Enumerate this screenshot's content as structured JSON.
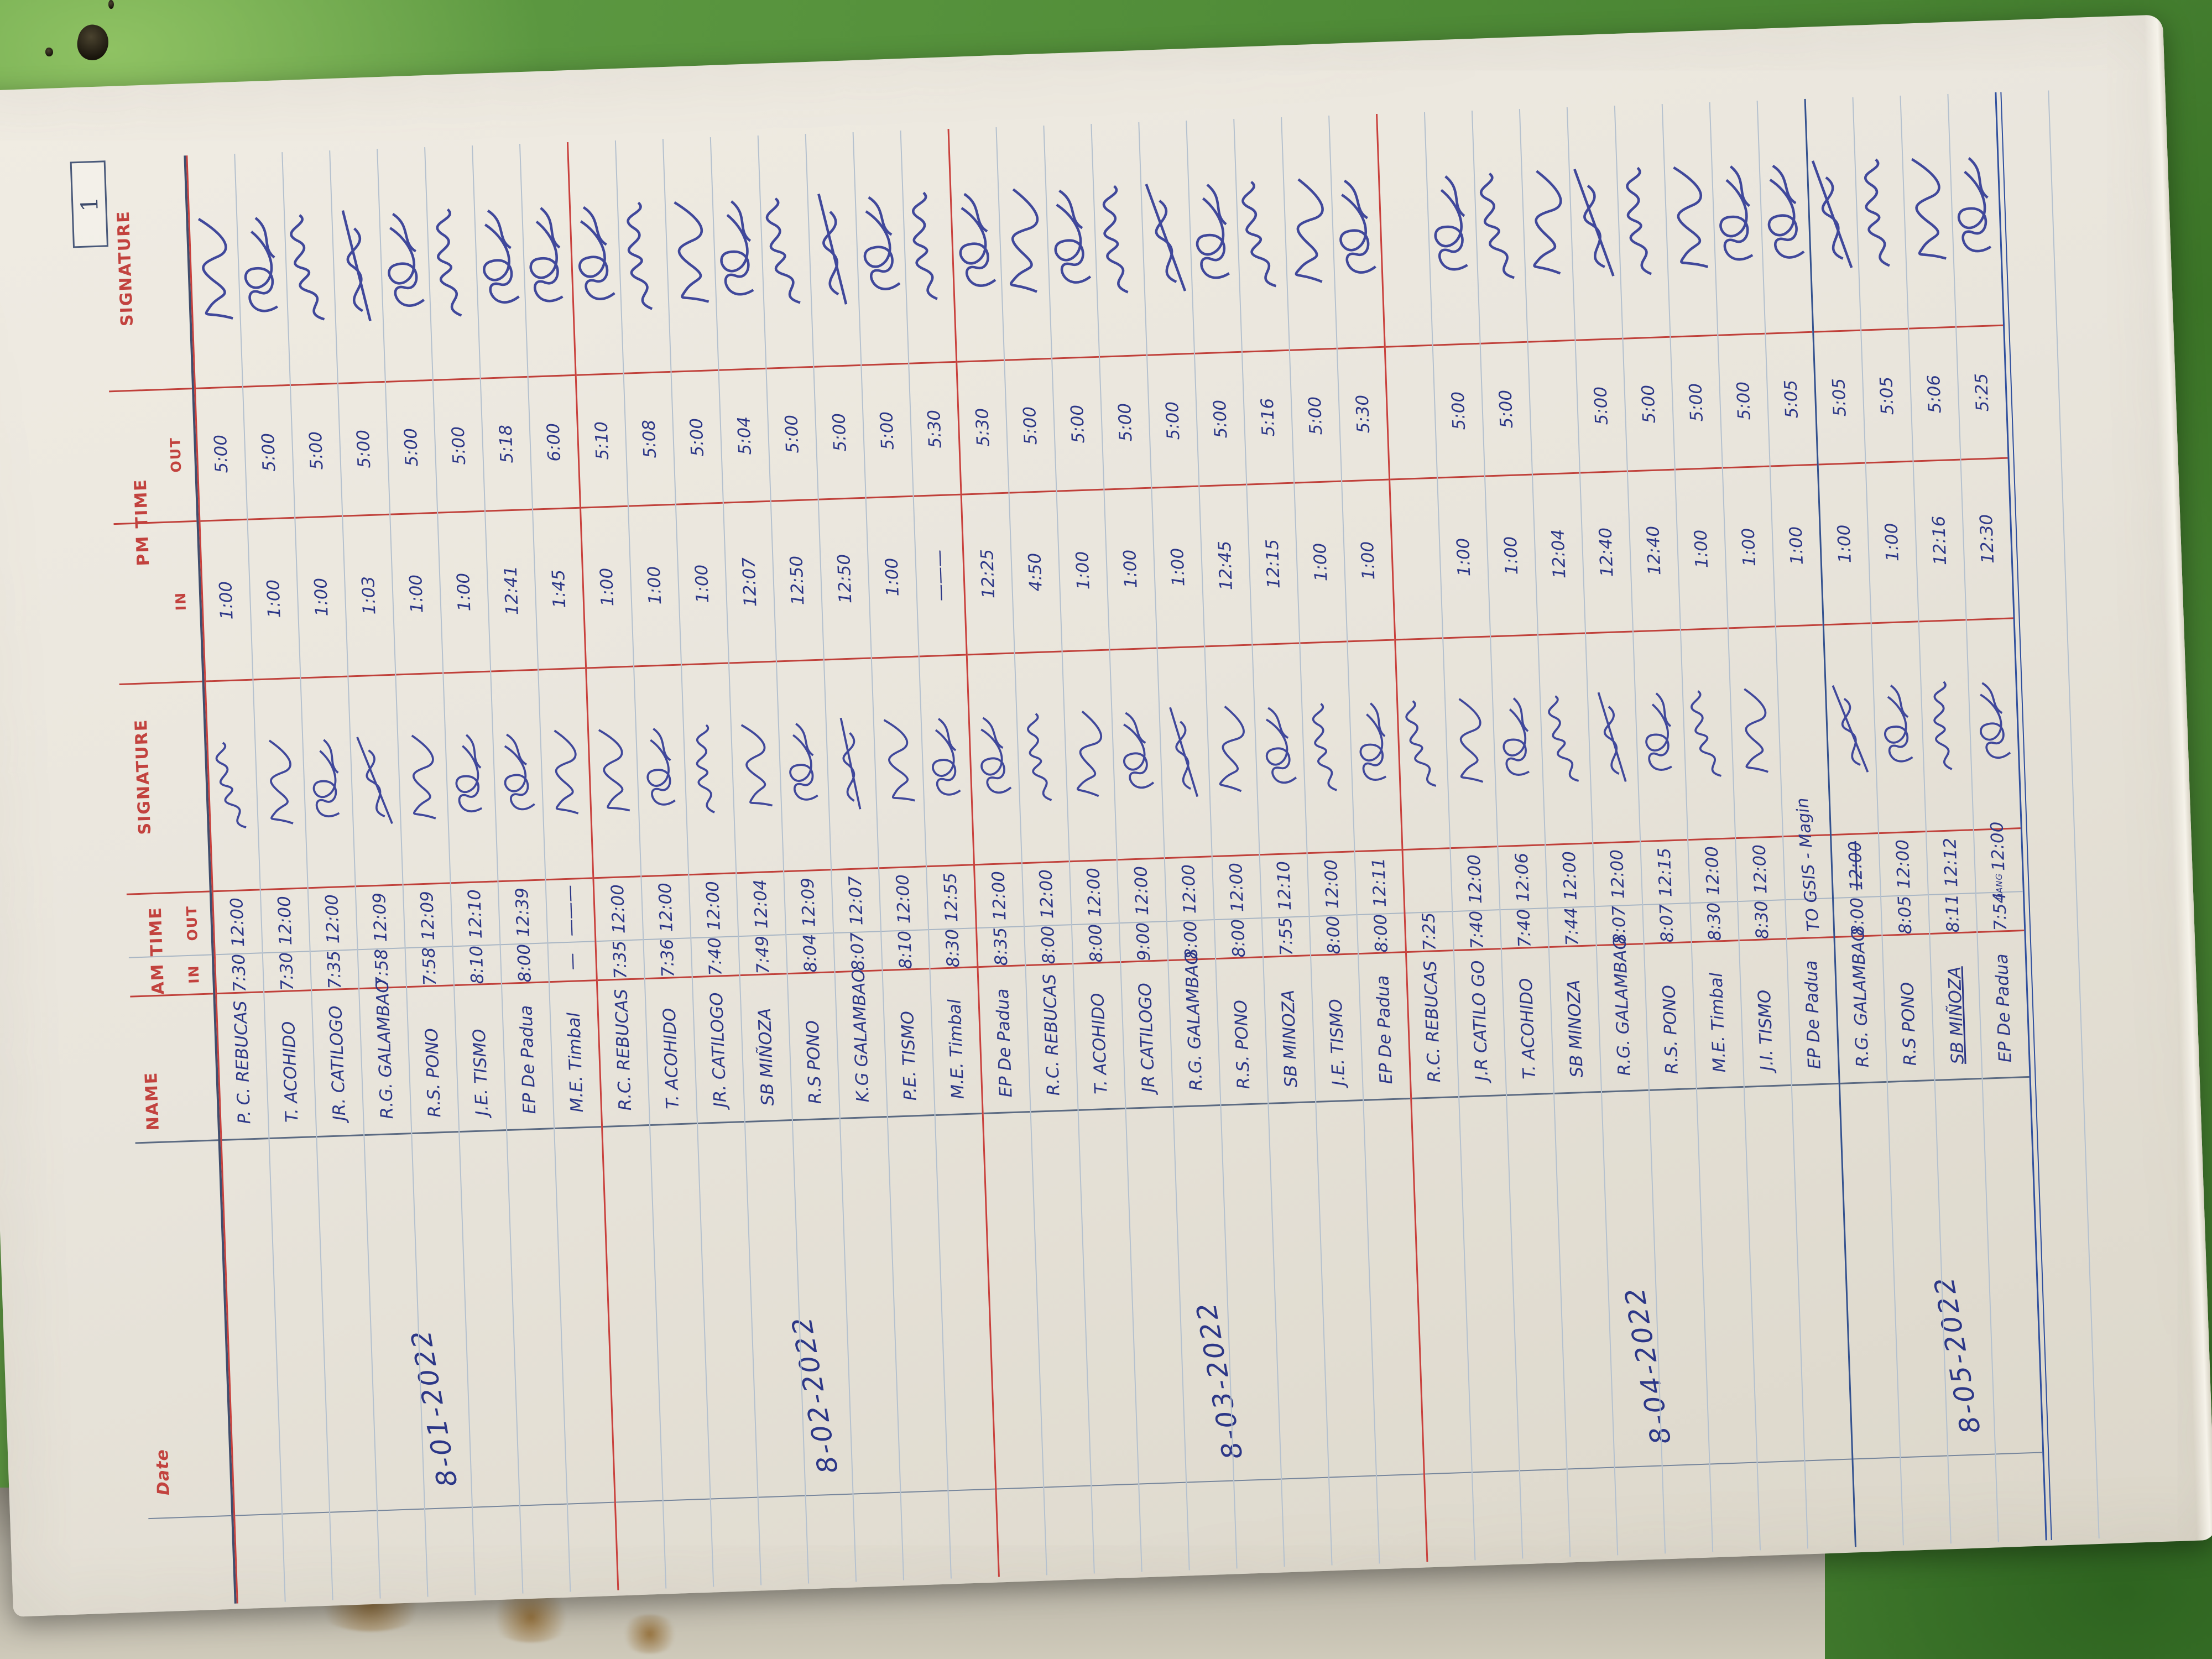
{
  "page_number": "1",
  "headers": {
    "date": "Date",
    "name": "NAME",
    "am_time": "AM TIME",
    "pm_time": "PM TIME",
    "in": "IN",
    "out": "OUT",
    "signature": "SIGNATURE"
  },
  "colors": {
    "table_green": "#4f8b37",
    "page": "#e9e5dc",
    "ink_blue": "#2c3787",
    "header_red": "#c2423e",
    "group_line_red": "#c9403c",
    "end_line_blue": "#2f4f9e"
  },
  "groups": [
    {
      "date": "8-01-2022",
      "rows": [
        {
          "name": "P. C. REBUCAS",
          "am_in": "7:30",
          "am_out": "12:00",
          "pm_in": "1:00",
          "pm_out": "5:00"
        },
        {
          "name": "T. ACOHIDO",
          "am_in": "7:30",
          "am_out": "12:00",
          "pm_in": "1:00",
          "pm_out": "5:00"
        },
        {
          "name": "JR. CATILOGO",
          "am_in": "7:35",
          "am_out": "12:00",
          "pm_in": "1:00",
          "pm_out": "5:00"
        },
        {
          "name": "R.G. GALAMBAO",
          "am_in": "7:58",
          "am_out": "12:09",
          "pm_in": "1:03",
          "pm_out": "5:00"
        },
        {
          "name": "R.S. PONO",
          "am_in": "7:58",
          "am_out": "12:09",
          "pm_in": "1:00",
          "pm_out": "5:00"
        },
        {
          "name": "J.E. TISMO",
          "am_in": "8:10",
          "am_out": "12:10",
          "pm_in": "1:00",
          "pm_out": "5:00"
        },
        {
          "name": "EP De Padua",
          "am_in": "8:00",
          "am_out": "12:39",
          "pm_in": "12:41",
          "pm_out": "5:18"
        },
        {
          "name": "M.E. Timbal",
          "am_in": "—",
          "am_out": "———",
          "pm_in": "1:45",
          "pm_out": "6:00"
        }
      ]
    },
    {
      "date": "8-02-2022",
      "rows": [
        {
          "name": "R.C. REBUCAS",
          "am_in": "7:35",
          "am_out": "12:00",
          "pm_in": "1:00",
          "pm_out": "5:10"
        },
        {
          "name": "T. ACOHIDO",
          "am_in": "7:36",
          "am_out": "12:00",
          "pm_in": "1:00",
          "pm_out": "5:08"
        },
        {
          "name": "JR. CATILOGO",
          "am_in": "7:40",
          "am_out": "12:00",
          "pm_in": "1:00",
          "pm_out": "5:00"
        },
        {
          "name": "SB MIÑOZA",
          "am_in": "7:49",
          "am_out": "12:04",
          "pm_in": "12:07",
          "pm_out": "5:04"
        },
        {
          "name": "R.S PONO",
          "am_in": "8:04",
          "am_out": "12:09",
          "pm_in": "12:50",
          "pm_out": "5:00"
        },
        {
          "name": "K.G GALAMBAO",
          "am_in": "8:07",
          "am_out": "12:07",
          "pm_in": "12:50",
          "pm_out": "5:00"
        },
        {
          "name": "P.E. TISMO",
          "am_in": "8:10",
          "am_out": "12:00",
          "pm_in": "1:00",
          "pm_out": "5:00"
        },
        {
          "name": "M.E. Timbal",
          "am_in": "8:30",
          "am_out": "12:55",
          "pm_in": "———",
          "pm_out": "5:30"
        }
      ]
    },
    {
      "date": "8-03-2022",
      "rows": [
        {
          "name": "EP De Padua",
          "am_in": "8:35",
          "am_out": "12:00",
          "pm_in": "12:25",
          "pm_out": "5:30"
        },
        {
          "name": "R.C. REBUCAS",
          "am_in": "8:00",
          "am_out": "12:00",
          "pm_in": "4:50",
          "pm_out": "5:00"
        },
        {
          "name": "T. ACOHIDO",
          "am_in": "8:00",
          "am_out": "12:00",
          "pm_in": "1:00",
          "pm_out": "5:00"
        },
        {
          "name": "JR CATILOGO",
          "am_in": "9:00",
          "am_out": "12:00",
          "pm_in": "1:00",
          "pm_out": "5:00"
        },
        {
          "name": "R.G. GALAMBAO",
          "am_in": "8:00",
          "am_out": "12:00",
          "pm_in": "1:00",
          "pm_out": "5:00"
        },
        {
          "name": "R.S. PONO",
          "am_in": "8:00",
          "am_out": "12:00",
          "pm_in": "12:45",
          "pm_out": "5:00"
        },
        {
          "name": "SB MINOZA",
          "am_in": "7:55",
          "am_out": "12:10",
          "pm_in": "12:15",
          "pm_out": "5:16"
        },
        {
          "name": "J.E. TISMO",
          "am_in": "8:00",
          "am_out": "12:00",
          "pm_in": "1:00",
          "pm_out": "5:00"
        },
        {
          "name": "EP De Padua",
          "am_in": "8:00",
          "am_out": "12:11",
          "pm_in": "1:00",
          "pm_out": "5:30"
        }
      ]
    },
    {
      "date": "8-04-2022",
      "rows": [
        {
          "name": "R.C. REBUCAS",
          "am_in": "7:25",
          "am_out": "",
          "pm_in": "",
          "pm_out": "",
          "pm_sig": false
        },
        {
          "name": "J.R CATILO GO",
          "am_in": "7:40",
          "am_out": "12:00",
          "pm_in": "1:00",
          "pm_out": "5:00"
        },
        {
          "name": "T. ACOHIDO",
          "am_in": "7:40",
          "am_out": "12:06",
          "pm_in": "1:00",
          "pm_out": "5:00"
        },
        {
          "name": "SB MINOZA",
          "am_in": "7:44",
          "am_out": "12:00",
          "pm_in": "12:04",
          "pm_out": ""
        },
        {
          "name": "R.G. GALAMBAO",
          "am_in": "8:07",
          "am_out": "12:00",
          "pm_in": "12:40",
          "pm_out": "5:00"
        },
        {
          "name": "R.S. PONO",
          "am_in": "8:07",
          "am_out": "12:15",
          "pm_in": "12:40",
          "pm_out": "5:00"
        },
        {
          "name": "M.E. Timbal",
          "am_in": "8:30",
          "am_out": "12:00",
          "pm_in": "1:00",
          "pm_out": "5:00"
        },
        {
          "name": "J.I. TISMO",
          "am_in": "8:30",
          "am_out": "12:00",
          "pm_in": "1:00",
          "pm_out": "5:00"
        },
        {
          "name": "EP De Padua",
          "am_in": "",
          "am_out": "",
          "note": "TO GSIS - Magin",
          "am_sig": false,
          "pm_in": "1:00",
          "pm_out": "5:05"
        }
      ]
    },
    {
      "date": "8-05-2022",
      "rows": [
        {
          "name": "R.G. GALAMBAO",
          "am_in": "8:00",
          "am_out": "12:00",
          "strike_am_out": true,
          "pm_in": "1:00",
          "pm_out": "5:05"
        },
        {
          "name": "R.S PONO",
          "am_in": "8:05",
          "am_out": "12:00",
          "pm_in": "1:00",
          "pm_out": "5:05"
        },
        {
          "name": "SB MIÑOZA",
          "underline": true,
          "am_in": "8:11",
          "am_out": "12:12",
          "pm_in": "12:16",
          "pm_out": "5:06"
        },
        {
          "name": "EP De Padua",
          "am_in": "7:54",
          "am_out": "12:00",
          "am_out_note": "DANG",
          "pm_in": "12:30",
          "pm_out": "5:25"
        }
      ]
    }
  ]
}
